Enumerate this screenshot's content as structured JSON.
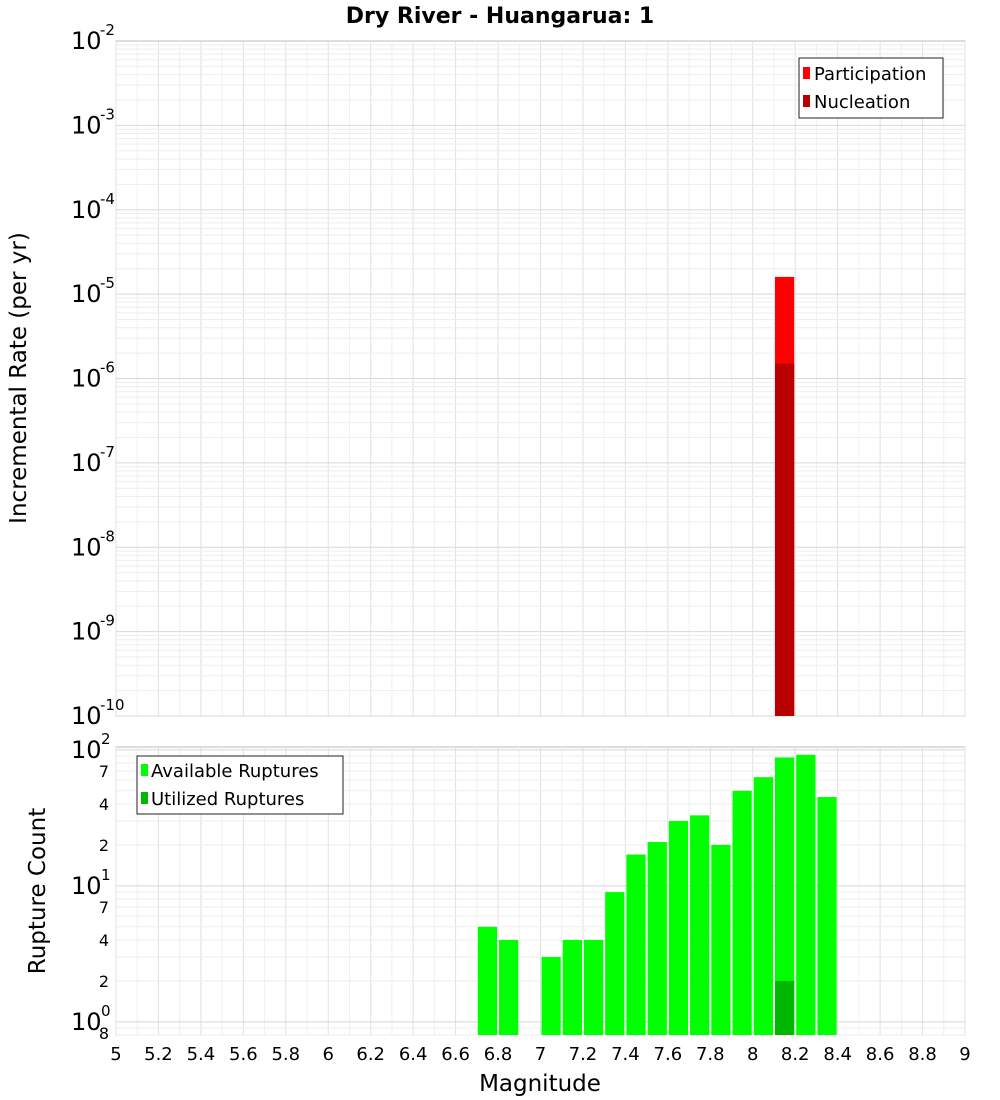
{
  "chart_data": {
    "title": "Dry River - Huangarua: 1",
    "xlabel": "Magnitude",
    "xlim": [
      5,
      9
    ],
    "x_tick_labels": [
      "5",
      "5.2",
      "5.4",
      "5.6",
      "5.8",
      "6",
      "6.2",
      "6.4",
      "6.6",
      "6.8",
      "7",
      "7.2",
      "7.4",
      "7.6",
      "7.8",
      "8",
      "8.2",
      "8.4",
      "8.6",
      "8.8",
      "9"
    ],
    "panels": [
      {
        "type": "bar",
        "ylabel": "Incremental Rate (per yr)",
        "yscale": "log",
        "ylim": [
          1e-10,
          0.01
        ],
        "decade_ticks": [
          {
            "base": "10",
            "exp": "-2"
          },
          {
            "base": "10",
            "exp": "-3"
          },
          {
            "base": "10",
            "exp": "-4"
          },
          {
            "base": "10",
            "exp": "-5"
          },
          {
            "base": "10",
            "exp": "-6"
          },
          {
            "base": "10",
            "exp": "-7"
          },
          {
            "base": "10",
            "exp": "-8"
          },
          {
            "base": "10",
            "exp": "-9"
          },
          {
            "base": "10",
            "exp": "-10"
          }
        ],
        "legend": [
          "Participation",
          "Nucleation"
        ],
        "series": [
          {
            "name": "Participation",
            "color": "#ff0000",
            "x": [
              8.15
            ],
            "values": [
              1.6e-05
            ]
          },
          {
            "name": "Nucleation",
            "color": "#b80000",
            "x": [
              8.15
            ],
            "values": [
              1.5e-06
            ]
          }
        ]
      },
      {
        "type": "bar",
        "ylabel": "Rupture Count",
        "yscale": "log",
        "ylim": [
          0.8,
          105
        ],
        "decade_ticks": [
          {
            "base": "10",
            "exp": "2",
            "value": 100
          },
          {
            "base": "10",
            "exp": "1",
            "value": 10
          },
          {
            "base": "10",
            "exp": "0",
            "value": 1
          }
        ],
        "minor_tick_labels": [
          {
            "label": "7",
            "value": 70
          },
          {
            "label": "4",
            "value": 40
          },
          {
            "label": "2",
            "value": 20
          },
          {
            "label": "7",
            "value": 7
          },
          {
            "label": "4",
            "value": 4
          },
          {
            "label": "2",
            "value": 2
          },
          {
            "label": "8",
            "value": 0.8
          }
        ],
        "legend": [
          "Available Ruptures",
          "Utilized Ruptures"
        ],
        "series": [
          {
            "name": "Available Ruptures",
            "color": "#00ff00",
            "x": [
              6.75,
              6.85,
              7.05,
              7.15,
              7.25,
              7.35,
              7.45,
              7.55,
              7.65,
              7.75,
              7.85,
              7.95,
              8.05,
              8.15,
              8.25,
              8.35
            ],
            "values": [
              5,
              4,
              3,
              4,
              4,
              9,
              17,
              21,
              30,
              33,
              20,
              50,
              63,
              88,
              92,
              45
            ]
          },
          {
            "name": "Utilized Ruptures",
            "color": "#00b800",
            "x": [
              8.15
            ],
            "values": [
              2
            ]
          }
        ]
      }
    ]
  }
}
